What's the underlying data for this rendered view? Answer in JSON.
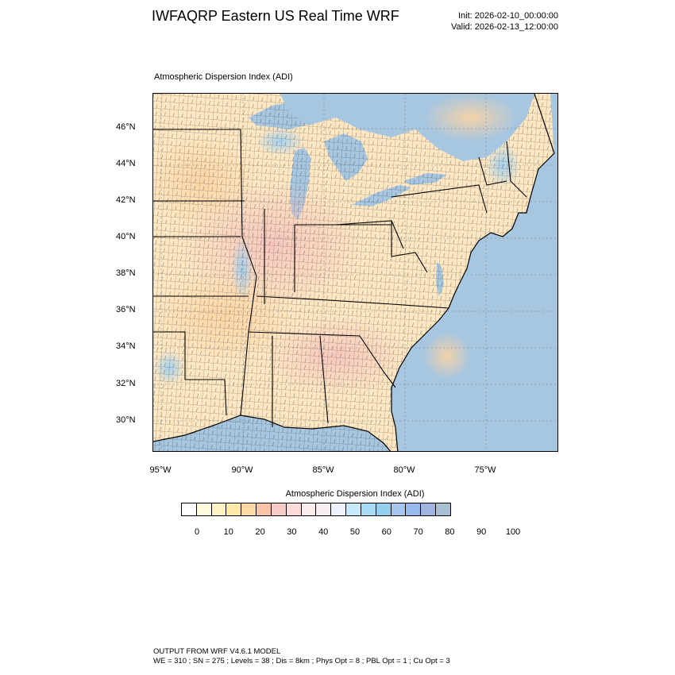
{
  "header": {
    "title": "IWFAQRP Eastern US Real Time WRF",
    "init": "Init: 2026-02-10_00:00:00",
    "valid": "Valid: 2026-02-13_12:00:00"
  },
  "map": {
    "subtitle": "Atmospheric Dispersion Index   (ADI)",
    "lat_labels": [
      "46°N",
      "44°N",
      "42°N",
      "40°N",
      "38°N",
      "36°N",
      "34°N",
      "32°N",
      "30°N"
    ],
    "lon_labels": [
      "95°W",
      "90°W",
      "85°W",
      "80°W",
      "75°W"
    ],
    "ocean_color": "#a7c6e0",
    "land_color": "#fde7c2"
  },
  "colorbar": {
    "title": "Atmospheric Dispersion Index  (ADI)",
    "tick_labels": [
      "0",
      "10",
      "20",
      "30",
      "40",
      "50",
      "60",
      "70",
      "80",
      "90",
      "100"
    ],
    "colors": [
      "#ffffff",
      "#fffbdc",
      "#fff3c2",
      "#ffe8a8",
      "#fdd9a3",
      "#f9c3a6",
      "#f6cbc6",
      "#fbdcd8",
      "#fdecec",
      "#f7eef4",
      "#eef3fb",
      "#c8e9fa",
      "#a6dcf6",
      "#92d0ee",
      "#a6c6ee",
      "#98b9eb",
      "#9fb5e0",
      "#a9c0d4"
    ]
  },
  "footer": {
    "line1": "OUTPUT FROM WRF V4.6.1 MODEL",
    "line2": "WE = 310 ; SN = 275 ; Levels = 38 ; Dis = 8km ; Phys Opt = 8 ; PBL Opt = 1 ; Cu Opt = 3"
  }
}
